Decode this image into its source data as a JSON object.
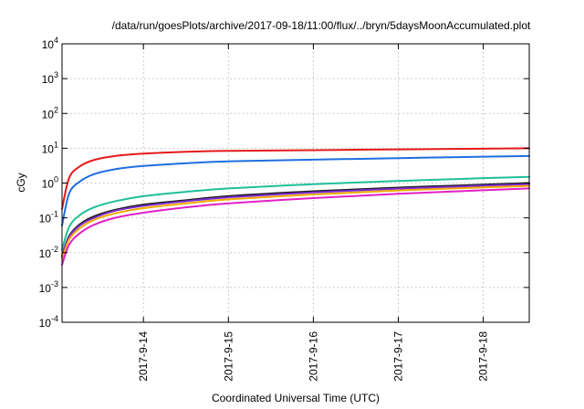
{
  "chart_data": {
    "type": "line",
    "title": "/data/run/goesPlots/archive/2017-09-18/11:00/flux/../bryn/5daysMoonAccumulated.plot",
    "xlabel": "Coordinated Universal Time (UTC)",
    "ylabel": "cGy",
    "y_scale": "log",
    "ylim": [
      0.0001,
      10000
    ],
    "xlim": [
      "2017-09-13 01:00",
      "2017-09-18 13:00"
    ],
    "grid": true,
    "y_ticks": [
      {
        "value": 0.0001,
        "base": "10",
        "exp": "-4"
      },
      {
        "value": 0.001,
        "base": "10",
        "exp": "-3"
      },
      {
        "value": 0.01,
        "base": "10",
        "exp": "-2"
      },
      {
        "value": 0.1,
        "base": "10",
        "exp": "-1"
      },
      {
        "value": 1,
        "base": "10",
        "exp": "0"
      },
      {
        "value": 10,
        "base": "10",
        "exp": "1"
      },
      {
        "value": 100,
        "base": "10",
        "exp": "2"
      },
      {
        "value": 1000,
        "base": "10",
        "exp": "3"
      },
      {
        "value": 10000,
        "base": "10",
        "exp": "4"
      }
    ],
    "x_ticks": [
      {
        "value": "2017-09-14 00:00",
        "label": "2017-9-14"
      },
      {
        "value": "2017-09-15 00:00",
        "label": "2017-9-15"
      },
      {
        "value": "2017-09-16 00:00",
        "label": "2017-9-16"
      },
      {
        "value": "2017-09-17 00:00",
        "label": "2017-9-17"
      },
      {
        "value": "2017-09-18 00:00",
        "label": "2017-9-18"
      }
    ],
    "series": [
      {
        "color": "#e41a1c",
        "points": [
          [
            "2017-09-13 01:00",
            0.18
          ],
          [
            "2017-09-13 03:00",
            1.4
          ],
          [
            "2017-09-13 06:00",
            3.0
          ],
          [
            "2017-09-13 10:00",
            4.6
          ],
          [
            "2017-09-13 16:00",
            6.0
          ],
          [
            "2017-09-14 00:00",
            7.0
          ],
          [
            "2017-09-14 12:00",
            7.9
          ],
          [
            "2017-09-15 00:00",
            8.4
          ],
          [
            "2017-09-16 00:00",
            8.8
          ],
          [
            "2017-09-17 00:00",
            9.3
          ],
          [
            "2017-09-18 00:00",
            9.7
          ],
          [
            "2017-09-18 13:00",
            10.0
          ]
        ]
      },
      {
        "color": "#1f6fe0",
        "points": [
          [
            "2017-09-13 01:00",
            0.06
          ],
          [
            "2017-09-13 03:00",
            0.5
          ],
          [
            "2017-09-13 06:00",
            1.1
          ],
          [
            "2017-09-13 10:00",
            1.8
          ],
          [
            "2017-09-13 16:00",
            2.5
          ],
          [
            "2017-09-14 00:00",
            3.1
          ],
          [
            "2017-09-14 12:00",
            3.7
          ],
          [
            "2017-09-15 00:00",
            4.2
          ],
          [
            "2017-09-16 00:00",
            4.7
          ],
          [
            "2017-09-17 00:00",
            5.2
          ],
          [
            "2017-09-18 00:00",
            5.7
          ],
          [
            "2017-09-18 13:00",
            6.0
          ]
        ]
      },
      {
        "color": "#1fbf99",
        "points": [
          [
            "2017-09-13 01:00",
            0.012
          ],
          [
            "2017-09-13 03:00",
            0.055
          ],
          [
            "2017-09-13 06:00",
            0.12
          ],
          [
            "2017-09-13 10:00",
            0.2
          ],
          [
            "2017-09-13 16:00",
            0.3
          ],
          [
            "2017-09-14 00:00",
            0.42
          ],
          [
            "2017-09-14 12:00",
            0.56
          ],
          [
            "2017-09-15 00:00",
            0.7
          ],
          [
            "2017-09-16 00:00",
            0.93
          ],
          [
            "2017-09-17 00:00",
            1.15
          ],
          [
            "2017-09-18 00:00",
            1.38
          ],
          [
            "2017-09-18 13:00",
            1.5
          ]
        ]
      },
      {
        "color": "#1a1a1a",
        "points": [
          [
            "2017-09-13 01:00",
            0.008
          ],
          [
            "2017-09-13 03:00",
            0.03
          ],
          [
            "2017-09-13 06:00",
            0.065
          ],
          [
            "2017-09-13 10:00",
            0.11
          ],
          [
            "2017-09-13 16:00",
            0.17
          ],
          [
            "2017-09-14 00:00",
            0.24
          ],
          [
            "2017-09-14 12:00",
            0.32
          ],
          [
            "2017-09-15 00:00",
            0.42
          ],
          [
            "2017-09-16 00:00",
            0.58
          ],
          [
            "2017-09-17 00:00",
            0.74
          ],
          [
            "2017-09-18 00:00",
            0.9
          ],
          [
            "2017-09-18 13:00",
            1.0
          ]
        ]
      },
      {
        "color": "#7b2cd1",
        "points": [
          [
            "2017-09-13 01:00",
            0.0075
          ],
          [
            "2017-09-13 03:00",
            0.028
          ],
          [
            "2017-09-13 06:00",
            0.06
          ],
          [
            "2017-09-13 10:00",
            0.1
          ],
          [
            "2017-09-13 16:00",
            0.16
          ],
          [
            "2017-09-14 00:00",
            0.22
          ],
          [
            "2017-09-14 12:00",
            0.3
          ],
          [
            "2017-09-15 00:00",
            0.39
          ],
          [
            "2017-09-16 00:00",
            0.54
          ],
          [
            "2017-09-17 00:00",
            0.69
          ],
          [
            "2017-09-18 00:00",
            0.84
          ],
          [
            "2017-09-18 13:00",
            0.93
          ]
        ]
      },
      {
        "color": "#f2a900",
        "points": [
          [
            "2017-09-13 01:00",
            0.0065
          ],
          [
            "2017-09-13 03:00",
            0.024
          ],
          [
            "2017-09-13 06:00",
            0.05
          ],
          [
            "2017-09-13 10:00",
            0.087
          ],
          [
            "2017-09-13 16:00",
            0.135
          ],
          [
            "2017-09-14 00:00",
            0.19
          ],
          [
            "2017-09-14 12:00",
            0.26
          ],
          [
            "2017-09-15 00:00",
            0.34
          ],
          [
            "2017-09-16 00:00",
            0.47
          ],
          [
            "2017-09-17 00:00",
            0.61
          ],
          [
            "2017-09-18 00:00",
            0.75
          ],
          [
            "2017-09-18 13:00",
            0.83
          ]
        ]
      },
      {
        "color": "#e020c8",
        "points": [
          [
            "2017-09-13 01:00",
            0.0045
          ],
          [
            "2017-09-13 03:00",
            0.017
          ],
          [
            "2017-09-13 06:00",
            0.036
          ],
          [
            "2017-09-13 10:00",
            0.063
          ],
          [
            "2017-09-13 16:00",
            0.1
          ],
          [
            "2017-09-14 00:00",
            0.14
          ],
          [
            "2017-09-14 12:00",
            0.2
          ],
          [
            "2017-09-15 00:00",
            0.26
          ],
          [
            "2017-09-16 00:00",
            0.37
          ],
          [
            "2017-09-17 00:00",
            0.49
          ],
          [
            "2017-09-18 00:00",
            0.62
          ],
          [
            "2017-09-18 13:00",
            0.7
          ]
        ]
      }
    ]
  }
}
